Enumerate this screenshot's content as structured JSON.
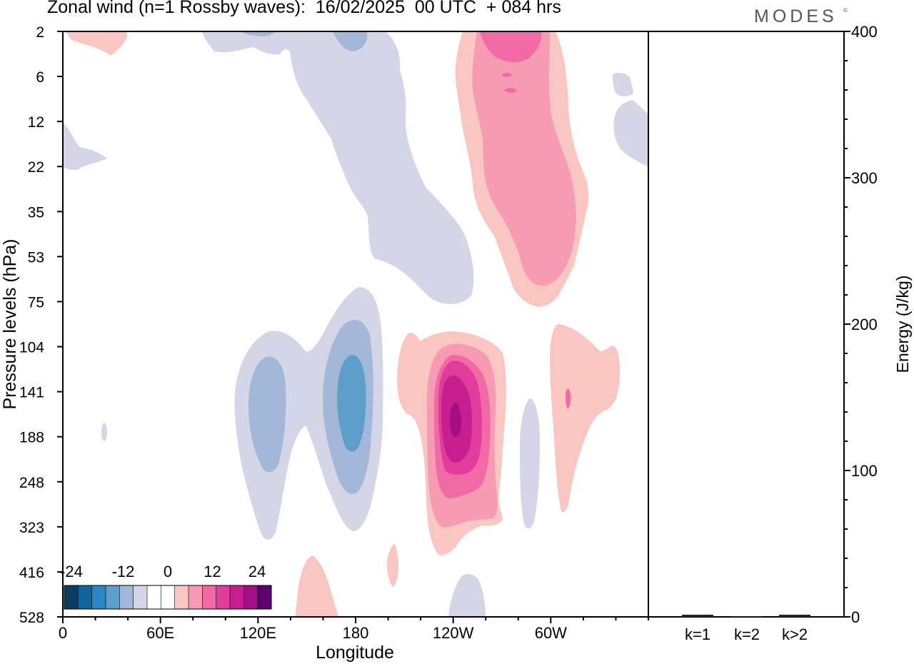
{
  "title": "Zonal wind (n=1 Rossby waves):  16/02/2025  00 UTC  + 084 hrs",
  "brand": "MODES",
  "brand_mark": "©",
  "colors": {
    "blue": [
      "#0b3d5e",
      "#10669b",
      "#2b87c1",
      "#5d9ecb",
      "#a3b8d8",
      "#d4d6e8"
    ],
    "pink": [
      "#f9c6c2",
      "#f79bb3",
      "#f16aa6",
      "#e13b9c",
      "#c71e8f",
      "#a20e84"
    ],
    "colorbar": [
      "#0b3d5e",
      "#10669b",
      "#2b87c1",
      "#5d9ecb",
      "#a3b8d8",
      "#d4d6e8",
      "#ffffff",
      "#ffffff",
      "#f9c6c2",
      "#f79bb3",
      "#f16aa6",
      "#e13b9c",
      "#c71e8f",
      "#a20e84",
      "#5a0070"
    ]
  },
  "chart_data": [
    {
      "type": "heatmap",
      "title": "Zonal wind (n=1 Rossby waves):  16/02/2025  00 UTC  + 084 hrs",
      "xlabel": "Longitude",
      "ylabel": "Pressure levels (hPa)",
      "x_ticks": [
        "0",
        "60E",
        "120E",
        "180",
        "120W",
        "60W"
      ],
      "x_tick_values": [
        0,
        60,
        120,
        180,
        240,
        300
      ],
      "xlim": [
        0,
        360
      ],
      "y_ticks": [
        "2",
        "6",
        "12",
        "22",
        "35",
        "53",
        "75",
        "104",
        "141",
        "188",
        "248",
        "323",
        "416",
        "528"
      ],
      "y_axis_inverted": true,
      "colorbar": {
        "tick_labels": [
          "-24",
          "-12",
          "0",
          "12",
          "24"
        ],
        "tick_values": [
          -24,
          -12,
          0,
          12,
          24
        ],
        "placement": "bottom-left"
      },
      "features": [
        {
          "sign": "positive",
          "lon_range": [
            3,
            40
          ],
          "level_range": [
            "2",
            "6"
          ],
          "peak": 4
        },
        {
          "sign": "negative",
          "lon_range": [
            0,
            28
          ],
          "level_range": [
            "12",
            "22"
          ],
          "peak": -4
        },
        {
          "sign": "negative",
          "lon_range": [
            85,
            250
          ],
          "level_range": [
            "2",
            "75"
          ],
          "peak": -8
        },
        {
          "sign": "positive",
          "lon_range": [
            240,
            320
          ],
          "level_range": [
            "2",
            "75"
          ],
          "peak": 16
        },
        {
          "sign": "negative",
          "lon_range": [
            340,
            360
          ],
          "level_range": [
            "2",
            "22"
          ],
          "peak": -4
        },
        {
          "sign": "negative",
          "lon_range": [
            105,
            160
          ],
          "level_range": [
            "104",
            "323"
          ],
          "peak": -8
        },
        {
          "sign": "negative",
          "lon_range": [
            155,
            195
          ],
          "level_range": [
            "75",
            "323"
          ],
          "peak": -12
        },
        {
          "sign": "positive",
          "lon_range": [
            205,
            275
          ],
          "level_range": [
            "104",
            "323"
          ],
          "peak": 24
        },
        {
          "sign": "negative",
          "lon_range": [
            280,
            292
          ],
          "level_range": [
            "141",
            "323"
          ],
          "peak": -4
        },
        {
          "sign": "positive",
          "lon_range": [
            300,
            345
          ],
          "level_range": [
            "104",
            "323"
          ],
          "peak": 4
        },
        {
          "sign": "positive",
          "lon_range": [
            145,
            170
          ],
          "level_range": [
            "416",
            "528"
          ],
          "peak": 4
        },
        {
          "sign": "negative",
          "lon_range": [
            230,
            260
          ],
          "level_range": [
            "416",
            "528"
          ],
          "peak": -4
        }
      ]
    },
    {
      "type": "bar",
      "categories": [
        "k=1",
        "k=2",
        "k>2"
      ],
      "values": [
        1.5,
        0.5,
        1.5
      ],
      "ylabel": "Energy (J/kg)",
      "ylim": [
        0,
        400
      ],
      "y_ticks": [
        "0",
        "100",
        "200",
        "300",
        "400"
      ]
    }
  ]
}
